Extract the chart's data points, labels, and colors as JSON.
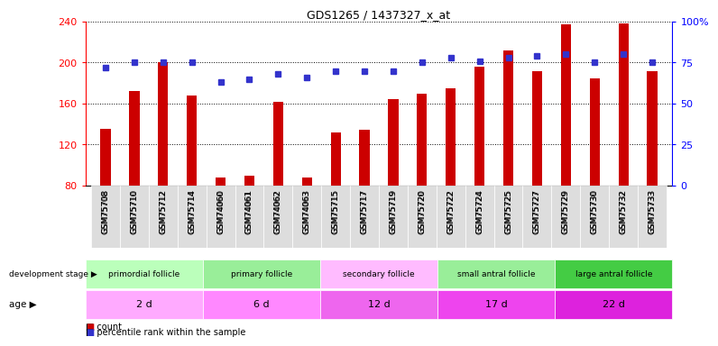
{
  "title": "GDS1265 / 1437327_x_at",
  "samples": [
    "GSM75708",
    "GSM75710",
    "GSM75712",
    "GSM75714",
    "GSM74060",
    "GSM74061",
    "GSM74062",
    "GSM74063",
    "GSM75715",
    "GSM75717",
    "GSM75719",
    "GSM75720",
    "GSM75722",
    "GSM75724",
    "GSM75725",
    "GSM75727",
    "GSM75729",
    "GSM75730",
    "GSM75732",
    "GSM75733"
  ],
  "counts": [
    135,
    172,
    200,
    168,
    88,
    90,
    162,
    88,
    132,
    134,
    164,
    170,
    175,
    196,
    212,
    192,
    237,
    185,
    238,
    192
  ],
  "percentile": [
    72,
    75,
    75,
    75,
    63,
    65,
    68,
    66,
    70,
    70,
    70,
    75,
    78,
    76,
    78,
    79,
    80,
    75,
    80,
    75
  ],
  "bar_color": "#cc0000",
  "dot_color": "#3333cc",
  "ylim_left": [
    80,
    240
  ],
  "ylim_right": [
    0,
    100
  ],
  "yticks_left": [
    80,
    120,
    160,
    200,
    240
  ],
  "yticks_right": [
    0,
    25,
    50,
    75,
    100
  ],
  "ytick_labels_right": [
    "0",
    "25",
    "50",
    "75",
    "100%"
  ],
  "groups": [
    {
      "label": "primordial follicle",
      "start": 0,
      "end": 4,
      "color": "#bbffbb"
    },
    {
      "label": "primary follicle",
      "start": 4,
      "end": 8,
      "color": "#99ee99"
    },
    {
      "label": "secondary follicle",
      "start": 8,
      "end": 12,
      "color": "#ffbbff"
    },
    {
      "label": "small antral follicle",
      "start": 12,
      "end": 16,
      "color": "#99ee99"
    },
    {
      "label": "large antral follicle",
      "start": 16,
      "end": 20,
      "color": "#44cc44"
    }
  ],
  "ages": [
    {
      "label": "2 d",
      "start": 0,
      "end": 4,
      "color": "#ffaaff"
    },
    {
      "label": "6 d",
      "start": 4,
      "end": 8,
      "color": "#ff88ff"
    },
    {
      "label": "12 d",
      "start": 8,
      "end": 12,
      "color": "#ee66ee"
    },
    {
      "label": "17 d",
      "start": 12,
      "end": 16,
      "color": "#ee44ee"
    },
    {
      "label": "22 d",
      "start": 16,
      "end": 20,
      "color": "#dd22dd"
    }
  ],
  "dev_stage_label": "development stage",
  "age_label": "age",
  "legend_count": "count",
  "legend_percentile": "percentile rank within the sample"
}
